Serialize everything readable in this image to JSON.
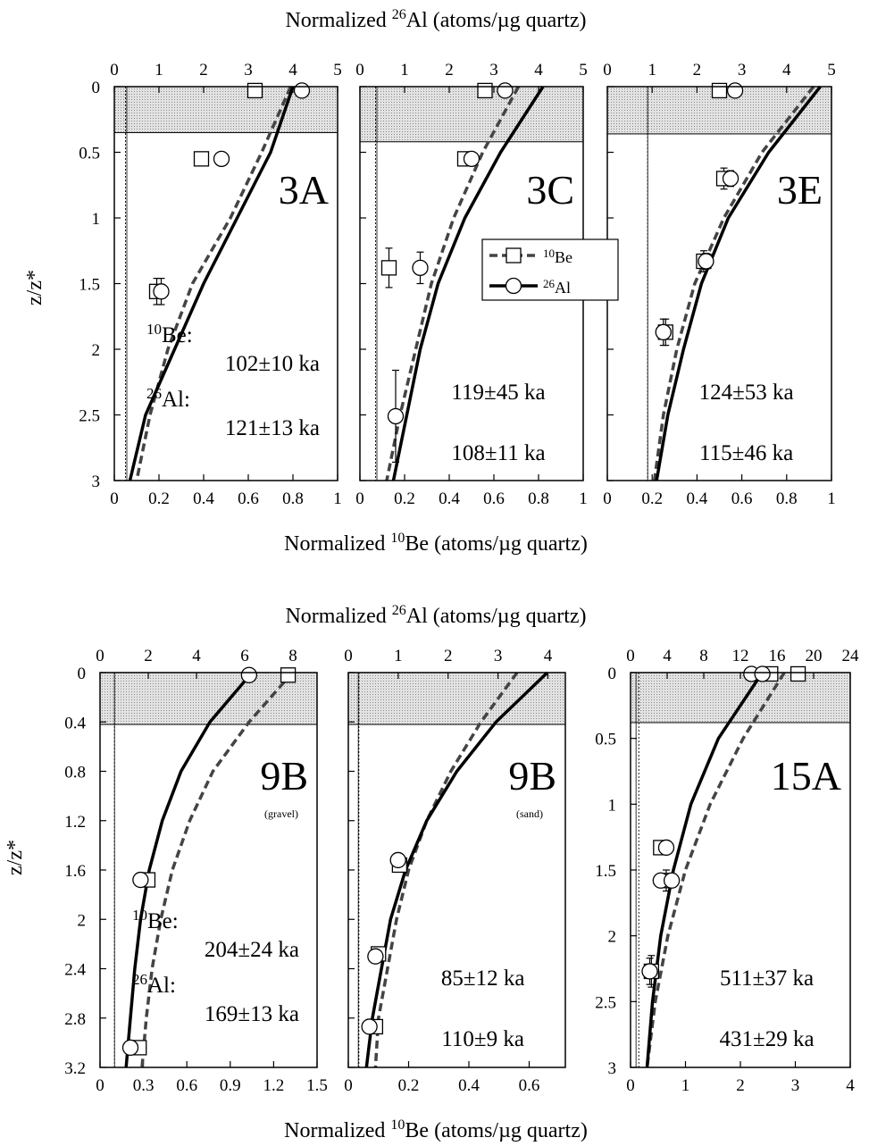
{
  "figure": {
    "top_label_prefix": "Normalized ",
    "top_label_isotope": "26",
    "top_label_suffix": "Al (atoms/µg quartz)",
    "bottom_label_prefix": "Normalized ",
    "bottom_label_isotope": "10",
    "bottom_label_suffix": "Be (atoms/µg quartz)",
    "ylabel": "z/z*",
    "legend": {
      "be_label": "10Be",
      "al_label": "26Al"
    },
    "colors": {
      "shade": "#d6d6d6",
      "line": "#000000",
      "dashed": "#444444"
    }
  },
  "chart_data": [
    {
      "id": "3A",
      "type": "scatter",
      "panel_label": "3A",
      "subtitle": "",
      "x_bottom_ticks": [
        0,
        0.2,
        0.4,
        0.6,
        0.8,
        1
      ],
      "x_bottom_lim": [
        0,
        1
      ],
      "x_top_ticks": [
        0,
        1,
        2,
        3,
        4,
        5
      ],
      "x_top_lim": [
        0,
        5
      ],
      "y_ticks": [
        0,
        0.5,
        1,
        1.5,
        2,
        2.5,
        3
      ],
      "y_lim": [
        0,
        3
      ],
      "shaded_depth": 0.35,
      "inheritance_be": 0.05,
      "inheritance_al": 0.28,
      "ages": [
        "102±10 ka",
        "121±13 ka"
      ],
      "age_labels": [
        "10Be:",
        "26Al:"
      ],
      "series": [
        {
          "name": "10Be",
          "points": [
            [
              0.63,
              0.03
            ],
            [
              0.39,
              0.55
            ],
            [
              0.19,
              1.56
            ]
          ],
          "err": [
            0,
            0,
            0.1
          ],
          "model": [
            [
              0.79,
              0
            ],
            [
              0.66,
              0.5
            ],
            [
              0.52,
              1
            ],
            [
              0.35,
              1.5
            ],
            [
              0.24,
              2
            ],
            [
              0.16,
              2.5
            ],
            [
              0.1,
              3
            ]
          ]
        },
        {
          "name": "26Al",
          "points": [
            [
              0.84,
              0.03
            ],
            [
              0.48,
              0.55
            ],
            [
              0.21,
              1.56
            ]
          ],
          "err": [
            0,
            0,
            0.1
          ],
          "model": [
            [
              0.8,
              0
            ],
            [
              0.7,
              0.5
            ],
            [
              0.55,
              1
            ],
            [
              0.4,
              1.5
            ],
            [
              0.27,
              2
            ],
            [
              0.14,
              2.5
            ],
            [
              0.07,
              3
            ]
          ]
        }
      ]
    },
    {
      "id": "3C",
      "type": "scatter",
      "panel_label": "3C",
      "subtitle": "",
      "x_bottom_ticks": [
        0,
        0.2,
        0.4,
        0.6,
        0.8,
        1
      ],
      "x_bottom_lim": [
        0,
        1
      ],
      "x_top_ticks": [
        0,
        1,
        2,
        3,
        4,
        5
      ],
      "x_top_lim": [
        0,
        5
      ],
      "y_ticks": [
        0,
        0.5,
        1,
        1.5,
        2,
        2.5,
        3
      ],
      "y_lim": [
        0,
        3
      ],
      "shaded_depth": 0.42,
      "inheritance_be": 0.07,
      "inheritance_al": 0.38,
      "ages": [
        "119±45 ka",
        "108±11 ka"
      ],
      "age_labels": [],
      "series": [
        {
          "name": "10Be",
          "points": [
            [
              0.56,
              0.03
            ],
            [
              0.47,
              0.55
            ],
            [
              0.13,
              1.38
            ]
          ],
          "err": [
            0,
            0,
            0.15
          ],
          "model": [
            [
              0.71,
              0
            ],
            [
              0.55,
              0.5
            ],
            [
              0.42,
              1
            ],
            [
              0.32,
              1.5
            ],
            [
              0.25,
              2
            ],
            [
              0.18,
              2.5
            ],
            [
              0.12,
              3
            ]
          ]
        },
        {
          "name": "26Al",
          "points": [
            [
              0.65,
              0.03
            ],
            [
              0.5,
              0.55
            ],
            [
              0.27,
              1.38
            ],
            [
              0.16,
              2.51
            ]
          ],
          "err": [
            0,
            0,
            0.12,
            0.35
          ],
          "model": [
            [
              0.82,
              0
            ],
            [
              0.63,
              0.5
            ],
            [
              0.47,
              1
            ],
            [
              0.35,
              1.5
            ],
            [
              0.27,
              2
            ],
            [
              0.21,
              2.5
            ],
            [
              0.15,
              3
            ]
          ]
        }
      ]
    },
    {
      "id": "3E",
      "type": "scatter",
      "panel_label": "3E",
      "subtitle": "",
      "x_bottom_ticks": [
        0,
        0.2,
        0.4,
        0.6,
        0.8,
        1
      ],
      "x_bottom_lim": [
        0,
        1
      ],
      "x_top_ticks": [
        0,
        1,
        2,
        3,
        4,
        5
      ],
      "x_top_lim": [
        0,
        5
      ],
      "y_ticks": [
        0,
        0.5,
        1,
        1.5,
        2,
        2.5,
        3
      ],
      "y_lim": [
        0,
        3
      ],
      "shaded_depth": 0.36,
      "inheritance_be": 0.18,
      "inheritance_al": 0.9,
      "ages": [
        "124±53 ka",
        "115±46 ka"
      ],
      "age_labels": [],
      "series": [
        {
          "name": "10Be",
          "points": [
            [
              0.5,
              0.03
            ],
            [
              0.52,
              0.7
            ],
            [
              0.43,
              1.33
            ],
            [
              0.26,
              1.87
            ]
          ],
          "err": [
            0,
            0.08,
            0.08,
            0.1
          ],
          "model": [
            [
              0.92,
              0
            ],
            [
              0.69,
              0.5
            ],
            [
              0.52,
              1
            ],
            [
              0.39,
              1.5
            ],
            [
              0.31,
              2
            ],
            [
              0.25,
              2.5
            ],
            [
              0.21,
              3
            ]
          ]
        },
        {
          "name": "26Al",
          "points": [
            [
              0.57,
              0.03
            ],
            [
              0.55,
              0.7
            ],
            [
              0.44,
              1.33
            ],
            [
              0.25,
              1.87
            ]
          ],
          "err": [
            0,
            0.06,
            0.06,
            0.1
          ],
          "model": [
            [
              0.95,
              0
            ],
            [
              0.72,
              0.5
            ],
            [
              0.54,
              1
            ],
            [
              0.42,
              1.5
            ],
            [
              0.34,
              2
            ],
            [
              0.27,
              2.5
            ],
            [
              0.22,
              3
            ]
          ]
        }
      ]
    },
    {
      "id": "9B-gravel",
      "type": "scatter",
      "panel_label": "9B",
      "subtitle": "(gravel)",
      "x_bottom_ticks": [
        0,
        0.3,
        0.6,
        0.9,
        1.2,
        1.5
      ],
      "x_bottom_lim": [
        0,
        1.5
      ],
      "x_top_ticks": [
        0,
        2,
        4,
        6,
        8
      ],
      "x_top_lim": [
        0,
        9
      ],
      "y_ticks": [
        0,
        0.4,
        0.8,
        1.2,
        1.6,
        2,
        2.4,
        2.8,
        3.2
      ],
      "y_lim": [
        0,
        3.2
      ],
      "shaded_depth": 0.42,
      "inheritance_be": 0.1,
      "inheritance_al": 0.6,
      "ages": [
        "204±24 ka",
        "169±13 ka"
      ],
      "age_labels": [
        "10Be:",
        "26Al:"
      ],
      "series": [
        {
          "name": "10Be",
          "points": [
            [
              1.3,
              0.02
            ],
            [
              0.33,
              1.68
            ],
            [
              0.27,
              3.04
            ]
          ],
          "err": [
            0,
            0,
            0
          ],
          "model": [
            [
              1.33,
              0
            ],
            [
              1.03,
              0.4
            ],
            [
              0.78,
              0.8
            ],
            [
              0.62,
              1.2
            ],
            [
              0.5,
              1.6
            ],
            [
              0.42,
              2
            ],
            [
              0.36,
              2.4
            ],
            [
              0.32,
              2.8
            ],
            [
              0.29,
              3.2
            ]
          ]
        },
        {
          "name": "26Al",
          "points": [
            [
              1.03,
              0.02
            ],
            [
              0.28,
              1.68
            ],
            [
              0.21,
              3.04
            ]
          ],
          "err": [
            0,
            0,
            0
          ],
          "model": [
            [
              1.05,
              0
            ],
            [
              0.76,
              0.4
            ],
            [
              0.56,
              0.8
            ],
            [
              0.43,
              1.2
            ],
            [
              0.34,
              1.6
            ],
            [
              0.28,
              2
            ],
            [
              0.24,
              2.4
            ],
            [
              0.21,
              2.8
            ],
            [
              0.18,
              3.2
            ]
          ]
        }
      ]
    },
    {
      "id": "9B-sand",
      "type": "scatter",
      "panel_label": "9B",
      "subtitle": "(sand)",
      "x_bottom_ticks": [
        0,
        0.2,
        0.4,
        0.6
      ],
      "x_bottom_lim": [
        0,
        0.72
      ],
      "x_top_ticks": [
        0,
        1,
        2,
        3,
        4
      ],
      "x_top_lim": [
        0,
        4.35
      ],
      "y_ticks": [
        0,
        0.4,
        0.8,
        1.2,
        1.6,
        2,
        2.4,
        2.8,
        3.2
      ],
      "y_lim": [
        0,
        3.2
      ],
      "shaded_depth": 0.42,
      "inheritance_be": 0.035,
      "inheritance_al": 0.2,
      "ages": [
        "85±12 ka",
        "110±9 ka"
      ],
      "age_labels": [],
      "series": [
        {
          "name": "10Be",
          "points": [
            [
              0.17,
              1.56
            ],
            [
              0.1,
              2.28
            ],
            [
              0.09,
              2.87
            ]
          ],
          "err": [
            0,
            0,
            0
          ],
          "model": [
            [
              0.56,
              0
            ],
            [
              0.44,
              0.4
            ],
            [
              0.34,
              0.8
            ],
            [
              0.26,
              1.2
            ],
            [
              0.2,
              1.6
            ],
            [
              0.16,
              2
            ],
            [
              0.13,
              2.4
            ],
            [
              0.1,
              2.8
            ],
            [
              0.09,
              3.2
            ]
          ]
        },
        {
          "name": "26Al",
          "points": [
            [
              0.165,
              1.52
            ],
            [
              0.09,
              2.3
            ],
            [
              0.07,
              2.87
            ]
          ],
          "err": [
            0,
            0,
            0
          ],
          "model": [
            [
              0.66,
              0
            ],
            [
              0.49,
              0.4
            ],
            [
              0.36,
              0.8
            ],
            [
              0.26,
              1.2
            ],
            [
              0.19,
              1.6
            ],
            [
              0.14,
              2
            ],
            [
              0.11,
              2.4
            ],
            [
              0.08,
              2.8
            ],
            [
              0.06,
              3.2
            ]
          ]
        }
      ]
    },
    {
      "id": "15A",
      "type": "scatter",
      "panel_label": "15A",
      "subtitle": "",
      "x_bottom_ticks": [
        0,
        1,
        2,
        3,
        4
      ],
      "x_bottom_lim": [
        0,
        4
      ],
      "x_top_ticks": [
        0,
        4,
        8,
        12,
        16,
        20,
        24
      ],
      "x_top_lim": [
        0,
        24
      ],
      "y_ticks": [
        0,
        0.5,
        1,
        1.5,
        2,
        2.5,
        3
      ],
      "y_lim": [
        0,
        3
      ],
      "shaded_depth": 0.38,
      "inheritance_be": 0.15,
      "inheritance_al": 0.6,
      "ages": [
        "511±37 ka",
        "431±29 ka"
      ],
      "age_labels": [],
      "series": [
        {
          "name": "10Be",
          "points": [
            [
              3.05,
              0.01
            ],
            [
              2.55,
              0.01
            ],
            [
              0.55,
              1.33
            ],
            [
              0.65,
              1.58
            ],
            [
              0.38,
              2.27
            ]
          ],
          "err": [
            0,
            0,
            0,
            0.08,
            0.12
          ],
          "model": [
            [
              2.8,
              0
            ],
            [
              2.05,
              0.5
            ],
            [
              1.45,
              1
            ],
            [
              1.0,
              1.5
            ],
            [
              0.68,
              2
            ],
            [
              0.45,
              2.5
            ],
            [
              0.3,
              3
            ]
          ]
        },
        {
          "name": "26Al",
          "points": [
            [
              2.2,
              0.01
            ],
            [
              2.4,
              0.01
            ],
            [
              0.65,
              1.33
            ],
            [
              0.55,
              1.58
            ],
            [
              0.75,
              1.58
            ],
            [
              0.35,
              2.27
            ]
          ],
          "err": [
            0,
            0,
            0,
            0,
            0,
            0.1
          ],
          "model": [
            [
              2.4,
              0
            ],
            [
              1.6,
              0.5
            ],
            [
              1.1,
              1
            ],
            [
              0.78,
              1.5
            ],
            [
              0.55,
              2
            ],
            [
              0.4,
              2.5
            ],
            [
              0.3,
              3
            ]
          ]
        }
      ]
    }
  ]
}
